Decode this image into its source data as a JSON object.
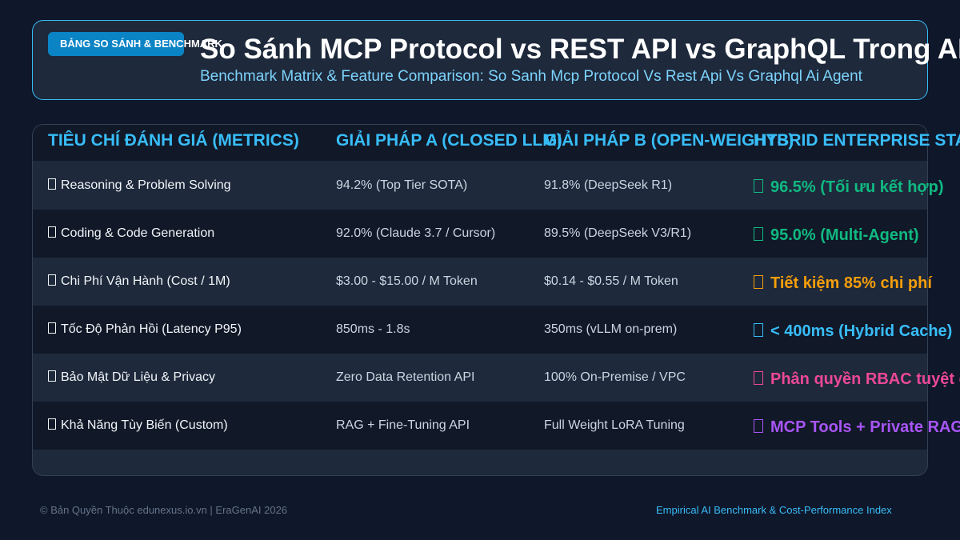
{
  "header": {
    "badge": "BẢNG SO SÁNH & BENCHMARK",
    "title": "So Sánh MCP Protocol vs REST API vs GraphQL Trong AI Agent",
    "subtitle": "Benchmark Matrix & Feature Comparison: So Sanh Mcp Protocol Vs Rest Api Vs Graphql Ai Agent"
  },
  "table": {
    "columns": [
      "TIÊU CHÍ ĐÁNH GIÁ (METRICS)",
      "GIẢI PHÁP A (CLOSED LLM)",
      "GIẢI PHÁP B (OPEN-WEIGHTS)",
      "HYBRID ENTERPRISE STACK"
    ],
    "rows": [
      [
        "Reasoning & Problem Solving",
        "94.2% (Top Tier SOTA)",
        "91.8% (DeepSeek R1)",
        "96.5% (Tối ưu kết hợp)"
      ],
      [
        "Coding & Code Generation",
        "92.0% (Claude 3.7 / Cursor)",
        "89.5% (DeepSeek V3/R1)",
        "95.0% (Multi-Agent)"
      ],
      [
        "Chi Phí Vận Hành (Cost / 1M)",
        "$3.00 - $15.00 / M Token",
        "$0.14 - $0.55 / M Token",
        "Tiết kiệm 85% chi phí"
      ],
      [
        "Tốc Độ Phản Hồi (Latency P95)",
        "850ms - 1.8s",
        "350ms (vLLM on-prem)",
        "< 400ms (Hybrid Cache)"
      ],
      [
        "Bảo Mật Dữ Liệu & Privacy",
        "Zero Data Retention API",
        "100% On-Premise / VPC",
        "Phân quyền RBAC tuyệt đối"
      ],
      [
        "Khả Năng Tùy Biến (Custom)",
        "RAG + Fine-Tuning API",
        "Full Weight LoRA Tuning",
        "MCP Tools + Private RAG"
      ]
    ]
  },
  "footer": {
    "left": "© Bản Quyền Thuộc edunexus.io.vn | EraGenAI 2026",
    "right": "Empirical AI Benchmark & Cost-Performance Index"
  }
}
